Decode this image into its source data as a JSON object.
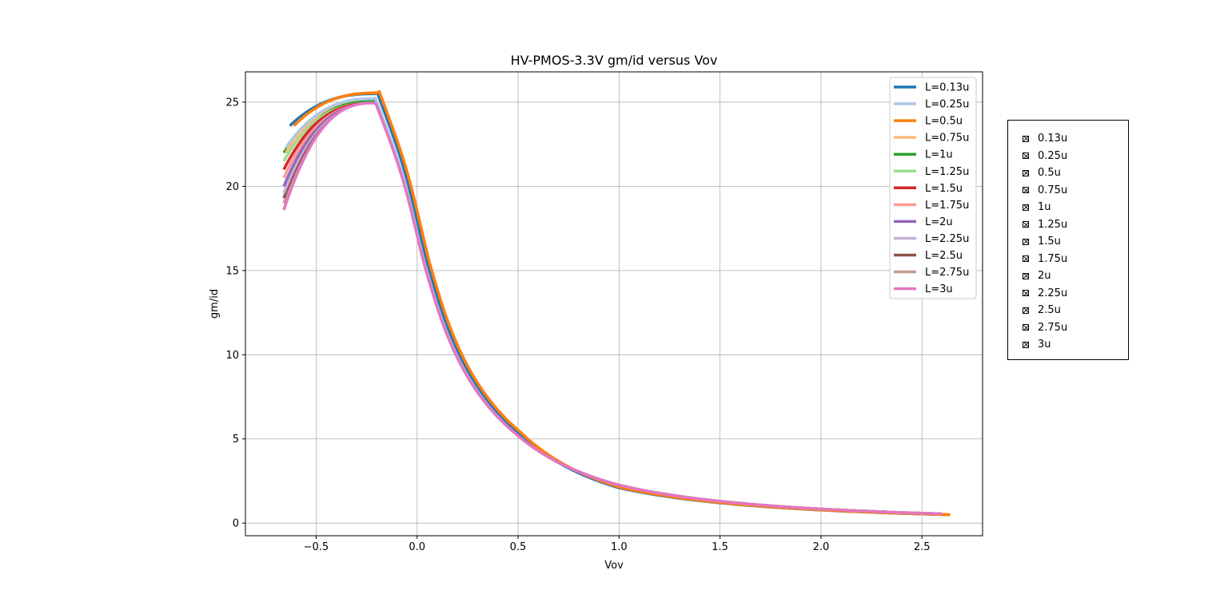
{
  "chart_data": {
    "type": "line",
    "title": "HV-PMOS-3.3V gm/id versus Vov",
    "xlabel": "Vov",
    "ylabel": "gm/id",
    "xlim": [
      -0.85,
      2.8
    ],
    "ylim": [
      -0.75,
      26.8
    ],
    "xticks": [
      -0.5,
      0.0,
      0.5,
      1.0,
      1.5,
      2.0,
      2.5
    ],
    "xtick_labels": [
      "−0.5",
      "0.0",
      "0.5",
      "1.0",
      "1.5",
      "2.0",
      "2.5"
    ],
    "yticks": [
      0,
      5,
      10,
      15,
      20,
      25
    ],
    "ytick_labels": [
      "0",
      "5",
      "10",
      "15",
      "20",
      "25"
    ],
    "grid": true,
    "legend_position": "top-right",
    "series": [
      {
        "name": "L=0.13u",
        "color": "#1f77b4",
        "x_start": -0.63,
        "x_end": 2.62,
        "y_start": 23.6,
        "peak_x": -0.2,
        "peak_y": 25.5,
        "y_end": 0.5
      },
      {
        "name": "L=0.25u",
        "color": "#aec7e8",
        "x_start": -0.65,
        "x_end": 2.6,
        "y_start": 22.3,
        "peak_x": -0.21,
        "peak_y": 25.2,
        "y_end": 0.55
      },
      {
        "name": "L=0.5u",
        "color": "#ff7f0e",
        "x_start": -0.61,
        "x_end": 2.64,
        "y_start": 23.6,
        "peak_x": -0.19,
        "peak_y": 25.55,
        "y_end": 0.5
      },
      {
        "name": "L=0.75u",
        "color": "#ffbb78",
        "x_start": -0.65,
        "x_end": 2.6,
        "y_start": 22.0,
        "peak_x": -0.21,
        "peak_y": 25.2,
        "y_end": 0.55
      },
      {
        "name": "L=1u",
        "color": "#2ca02c",
        "x_start": -0.66,
        "x_end": 2.6,
        "y_start": 22.0,
        "peak_x": -0.21,
        "peak_y": 25.1,
        "y_end": 0.55
      },
      {
        "name": "L=1.25u",
        "color": "#98df8a",
        "x_start": -0.66,
        "x_end": 2.6,
        "y_start": 21.5,
        "peak_x": -0.21,
        "peak_y": 25.1,
        "y_end": 0.55
      },
      {
        "name": "L=1.5u",
        "color": "#d62728",
        "x_start": -0.66,
        "x_end": 2.6,
        "y_start": 21.0,
        "peak_x": -0.21,
        "peak_y": 25.05,
        "y_end": 0.55
      },
      {
        "name": "L=1.75u",
        "color": "#ff9896",
        "x_start": -0.66,
        "x_end": 2.6,
        "y_start": 20.5,
        "peak_x": -0.21,
        "peak_y": 25.05,
        "y_end": 0.55
      },
      {
        "name": "L=2u",
        "color": "#9467bd",
        "x_start": -0.66,
        "x_end": 2.6,
        "y_start": 20.0,
        "peak_x": -0.21,
        "peak_y": 25.0,
        "y_end": 0.55
      },
      {
        "name": "L=2.25u",
        "color": "#c5b0d5",
        "x_start": -0.66,
        "x_end": 2.6,
        "y_start": 19.6,
        "peak_x": -0.21,
        "peak_y": 25.0,
        "y_end": 0.55
      },
      {
        "name": "L=2.5u",
        "color": "#8c564b",
        "x_start": -0.66,
        "x_end": 2.6,
        "y_start": 19.3,
        "peak_x": -0.21,
        "peak_y": 25.0,
        "y_end": 0.55
      },
      {
        "name": "L=2.75u",
        "color": "#c49c94",
        "x_start": -0.66,
        "x_end": 2.6,
        "y_start": 19.0,
        "peak_x": -0.21,
        "peak_y": 25.0,
        "y_end": 0.55
      },
      {
        "name": "L=3u",
        "color": "#e377c2",
        "x_start": -0.66,
        "x_end": 2.6,
        "y_start": 18.6,
        "peak_x": -0.21,
        "peak_y": 24.95,
        "y_end": 0.55
      }
    ]
  },
  "side_panel": {
    "items": [
      {
        "label": "0.13u"
      },
      {
        "label": "0.25u"
      },
      {
        "label": "0.5u"
      },
      {
        "label": "0.75u"
      },
      {
        "label": "1u"
      },
      {
        "label": "1.25u"
      },
      {
        "label": "1.5u"
      },
      {
        "label": "1.75u"
      },
      {
        "label": "2u"
      },
      {
        "label": "2.25u"
      },
      {
        "label": "2.5u"
      },
      {
        "label": "2.75u"
      },
      {
        "label": "3u"
      }
    ]
  }
}
